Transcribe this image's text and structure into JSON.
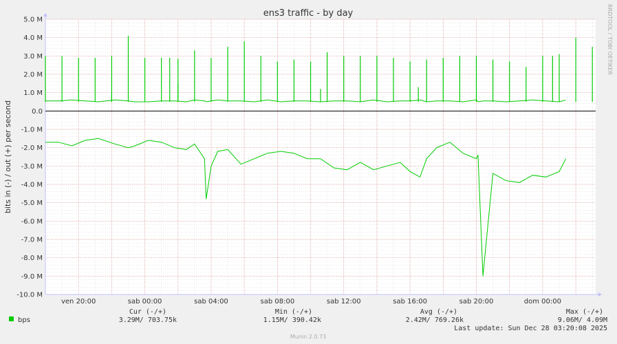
{
  "chart_data": {
    "type": "line",
    "title": "ens3 traffic - by day",
    "ylabel": "bits in (-) / out (+) per second",
    "side_label": "RRDTOOL / TOBI OETIKER",
    "ylim": [
      -10.0,
      5.0
    ],
    "y_ticks": [
      "5.0 M",
      "4.0 M",
      "3.0 M",
      "2.0 M",
      "1.0 M",
      "0.0",
      "-1.0 M",
      "-2.0 M",
      "-3.0 M",
      "-4.0 M",
      "-5.0 M",
      "-6.0 M",
      "-7.0 M",
      "-8.0 M",
      "-9.0 M",
      "-10.0 M"
    ],
    "x_ticks": [
      "ven 20:00",
      "sab 00:00",
      "sab 04:00",
      "sab 08:00",
      "sab 12:00",
      "sab 16:00",
      "sab 20:00",
      "dom 00:00"
    ],
    "x_range_hours": [
      -2,
      31.2
    ],
    "x_tick_hours": [
      0,
      4,
      8,
      12,
      16,
      20,
      24,
      28
    ],
    "grid": true,
    "colors": {
      "series": "#00cc00",
      "zero": "#000000",
      "major_grid": "#e8a0a0",
      "minor_grid": "#d8d8d8",
      "axis_arrow": "#c0c0ff"
    },
    "series": [
      {
        "name": "bps",
        "x_hours": [
          -2.0,
          -1.2,
          -0.4,
          0.4,
          1.2,
          2.2,
          3.0,
          3.4,
          4.2,
          5.0,
          5.8,
          6.5,
          7.0,
          7.6,
          7.7,
          8.0,
          8.4,
          9.0,
          9.8,
          10.6,
          11.4,
          12.2,
          13.0,
          13.8,
          14.6,
          15.4,
          16.2,
          17.0,
          17.8,
          18.6,
          19.4,
          20.0,
          20.6,
          21.0,
          21.6,
          22.4,
          23.2,
          24.0,
          24.1,
          24.4,
          25.0,
          25.8,
          26.6,
          27.4,
          28.2,
          29.0,
          29.4
        ],
        "in_values": [
          -1.7,
          -1.7,
          -1.9,
          -1.6,
          -1.5,
          -1.8,
          -2.0,
          -1.9,
          -1.6,
          -1.7,
          -2.0,
          -2.1,
          -1.8,
          -2.6,
          -4.8,
          -3.0,
          -2.2,
          -2.1,
          -2.9,
          -2.6,
          -2.3,
          -2.2,
          -2.3,
          -2.6,
          -2.6,
          -3.1,
          -3.2,
          -2.8,
          -3.2,
          -3.0,
          -2.8,
          -3.3,
          -3.6,
          -2.6,
          -2.0,
          -1.7,
          -2.3,
          -2.6,
          -2.4,
          -9.0,
          -3.4,
          -3.8,
          -3.9,
          -3.5,
          -3.6,
          -3.3,
          -2.6
        ],
        "out_values": [
          0.55,
          0.55,
          0.6,
          0.55,
          0.5,
          0.6,
          0.55,
          0.5,
          0.5,
          0.55,
          0.55,
          0.5,
          0.6,
          0.55,
          0.5,
          0.55,
          0.6,
          0.55,
          0.55,
          0.5,
          0.6,
          0.5,
          0.55,
          0.55,
          0.5,
          0.55,
          0.55,
          0.5,
          0.6,
          0.5,
          0.55,
          0.55,
          0.6,
          0.5,
          0.55,
          0.55,
          0.5,
          0.6,
          0.5,
          0.55,
          0.55,
          0.5,
          0.55,
          0.6,
          0.55,
          0.5,
          0.6
        ]
      }
    ],
    "spikes": {
      "x_hours": [
        -2.0,
        -1.0,
        0.0,
        1.0,
        2.0,
        3.0,
        4.0,
        5.0,
        5.5,
        6.0,
        7.0,
        8.0,
        9.0,
        10.0,
        11.0,
        12.0,
        13.0,
        14.0,
        15.0,
        16.0,
        17.0,
        18.0,
        19.0,
        20.0,
        21.0,
        22.0,
        23.0,
        24.0,
        25.0,
        26.0,
        27.0,
        28.0,
        28.6,
        29.0,
        30.0,
        31.0,
        2.0,
        6.0,
        14.6,
        20.5
      ],
      "values": [
        3.0,
        3.0,
        2.9,
        2.9,
        3.0,
        4.1,
        2.9,
        2.9,
        2.9,
        2.85,
        3.3,
        2.9,
        3.5,
        3.8,
        3.0,
        2.7,
        2.8,
        2.7,
        3.2,
        3.0,
        3.0,
        3.0,
        2.9,
        2.7,
        2.8,
        2.9,
        3.0,
        3.0,
        2.8,
        2.7,
        2.4,
        3.0,
        3.0,
        3.1,
        4.0,
        3.5,
        1.0,
        1.5,
        1.2,
        1.3
      ]
    },
    "legend": {
      "series_name": "bps",
      "columns": [
        {
          "header": "Cur (-/+)",
          "value": "3.29M/          703.75k"
        },
        {
          "header": "Min (-/+)",
          "value": "1.15M/          390.42k"
        },
        {
          "header": "Avg (-/+)",
          "value": "2.42M/          769.26k"
        },
        {
          "header": "Max (-/+)",
          "value": "9.06M/             4.09M"
        }
      ],
      "last_update": "Last update:  Sun Dec 28 03:20:08 2025"
    },
    "footer": "Munin 2.0.73"
  }
}
